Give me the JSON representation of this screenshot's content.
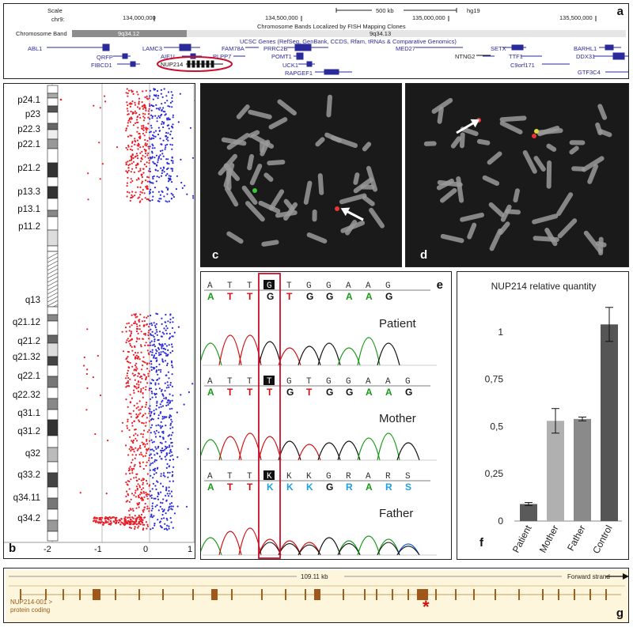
{
  "panel_labels": {
    "a": "a",
    "b": "b",
    "c": "c",
    "d": "d",
    "e": "e",
    "f": "f",
    "g": "g"
  },
  "browser": {
    "scale_label": "Scale",
    "chrom_label": "chr9:",
    "scale_bar": "500 kb",
    "assembly": "hg19",
    "positions": [
      "134,000,000",
      "134,500,000",
      "135,000,000",
      "135,500,000"
    ],
    "fish_track": "Chromosome Bands Localized by FISH Mapping Clones",
    "band_track_label": "Chromosome Band",
    "band_left": "9q34.12",
    "band_right": "9q34.13",
    "genes_track": "UCSC Genes (RefSeq, GenBank, CCDS, Rfam, tRNAs & Comparative Genomics)",
    "genes": [
      "ABL1",
      "QRFP",
      "FIBCD1",
      "LAMC3",
      "AIF1L",
      "NUP214",
      "FAM78A",
      "PRRC2B",
      "PLPP7",
      "POMT1",
      "UCK1",
      "RAPGEF1",
      "MED27",
      "NTNG2",
      "SETX",
      "TTF1",
      "C9orf171",
      "BARHL1",
      "DDX31",
      "GTF3C4"
    ],
    "highlight_gene": "NUP214"
  },
  "ideogram": {
    "bands": [
      "p24.1",
      "p23",
      "p22.3",
      "p22.1",
      "p21.2",
      "p13.3",
      "p13.1",
      "p11.2",
      "q13",
      "q21.12",
      "q21.2",
      "q21.32",
      "q22.1",
      "q22.32",
      "q31.1",
      "q31.2",
      "q32",
      "q33.2",
      "q34.11",
      "q34.2"
    ],
    "x_ticks": [
      "-2",
      "-1",
      "0",
      "1"
    ]
  },
  "sequence": {
    "samples": [
      "Patient",
      "Mother",
      "Father"
    ],
    "patient_ref": [
      "A",
      "T",
      "T",
      "G",
      "T",
      "G",
      "G",
      "A",
      "A",
      "G"
    ],
    "patient_call": [
      "A",
      "T",
      "T",
      "G",
      "T",
      "G",
      "G",
      "A",
      "A",
      "G"
    ],
    "mother_ref": [
      "A",
      "T",
      "T",
      "T",
      "G",
      "T",
      "G",
      "G",
      "A",
      "A",
      "G"
    ],
    "mother_call": [
      "A",
      "T",
      "T",
      "T",
      "G",
      "T",
      "G",
      "G",
      "A",
      "A",
      "G"
    ],
    "father_ref": [
      "A",
      "T",
      "T",
      "K",
      "K",
      "K",
      "G",
      "R",
      "A",
      "R",
      "S"
    ],
    "father_call": [
      "A",
      "T",
      "T",
      "K",
      "K",
      "K",
      "G",
      "R",
      "A",
      "R",
      "S"
    ]
  },
  "chart_data": {
    "type": "bar",
    "title": "NUP214 relative quantity",
    "categories": [
      "Patient",
      "Mother",
      "Father",
      "Control"
    ],
    "values": [
      0.09,
      0.53,
      0.54,
      1.04
    ],
    "errors": [
      0.008,
      0.065,
      0.01,
      0.09
    ],
    "ylim": [
      0,
      1.15
    ],
    "yticks": [
      "0",
      "0,25",
      "0,5",
      "0,75",
      "1"
    ],
    "colors": [
      "#5a5a5a",
      "#b0b0b0",
      "#8a8a8a",
      "#555555"
    ]
  },
  "transcript": {
    "length": "109.11 kb",
    "strand": "Forward strand",
    "name": "NUP214-001 >",
    "type": "protein coding",
    "marker": "*"
  }
}
